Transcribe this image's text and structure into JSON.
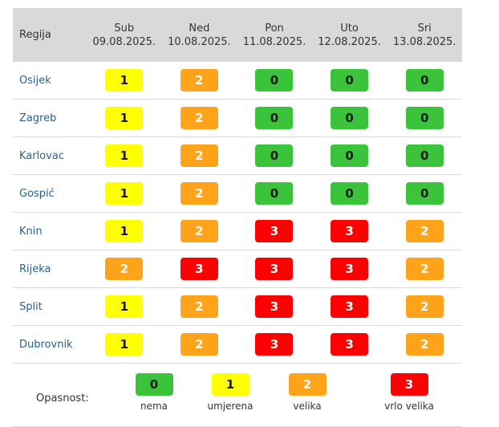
{
  "table": {
    "region_header": "Regija",
    "days": [
      {
        "weekday": "Sub",
        "date": "09.08.2025."
      },
      {
        "weekday": "Ned",
        "date": "10.08.2025."
      },
      {
        "weekday": "Pon",
        "date": "11.08.2025."
      },
      {
        "weekday": "Uto",
        "date": "12.08.2025."
      },
      {
        "weekday": "Sri",
        "date": "13.08.2025."
      }
    ],
    "rows": [
      {
        "region": "Osijek",
        "levels": [
          "1",
          "2",
          "0",
          "0",
          "0"
        ]
      },
      {
        "region": "Zagreb",
        "levels": [
          "1",
          "2",
          "0",
          "0",
          "0"
        ]
      },
      {
        "region": "Karlovac",
        "levels": [
          "1",
          "2",
          "0",
          "0",
          "0"
        ]
      },
      {
        "region": "Gospić",
        "levels": [
          "1",
          "2",
          "0",
          "0",
          "0"
        ]
      },
      {
        "region": "Knin",
        "levels": [
          "1",
          "2",
          "3",
          "3",
          "2"
        ]
      },
      {
        "region": "Rijeka",
        "levels": [
          "2",
          "3",
          "3",
          "3",
          "2"
        ]
      },
      {
        "region": "Split",
        "levels": [
          "1",
          "2",
          "3",
          "3",
          "2"
        ]
      },
      {
        "region": "Dubrovnik",
        "levels": [
          "1",
          "2",
          "3",
          "3",
          "2"
        ]
      }
    ]
  },
  "legend": {
    "title": "Opasnost:",
    "items": [
      {
        "level": "0",
        "label": "nema"
      },
      {
        "level": "1",
        "label": "umjerena"
      },
      {
        "level": "2",
        "label": "velika"
      },
      {
        "level": "3",
        "label": "vrlo velika"
      }
    ]
  },
  "colors": {
    "level_0": "#3bc33b",
    "level_1": "#ffff00",
    "level_2": "#ffa31a",
    "level_3": "#ff0000",
    "header_bg": "#d9d9d9",
    "region_text": "#2a5f8f"
  }
}
